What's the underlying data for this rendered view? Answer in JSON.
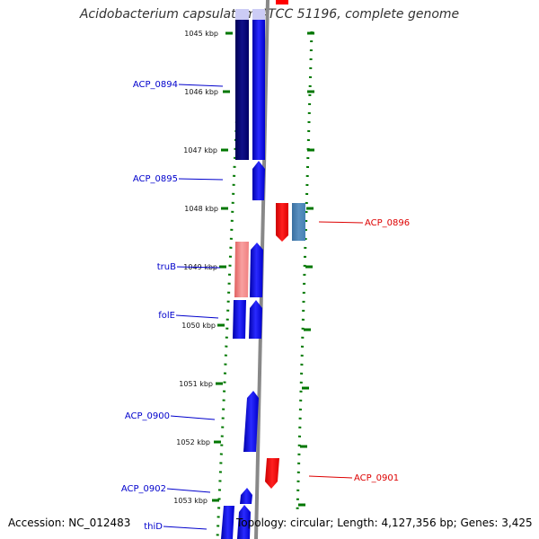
{
  "title": "Acidobacterium capsulatum ATCC 51196, complete genome",
  "ticks": [
    "1045 kbp",
    "1046 kbp",
    "1047 kbp",
    "1048 kbp",
    "1049 kbp",
    "1050 kbp",
    "1051 kbp",
    "1052 kbp",
    "1053 kbp"
  ],
  "genes": [
    {
      "name": "ACP_0894",
      "strand": "forward",
      "color": "#0000cc"
    },
    {
      "name": "ACP_0895",
      "strand": "forward",
      "color": "#0000cc"
    },
    {
      "name": "ACP_0896",
      "strand": "reverse",
      "color": "#dd0000"
    },
    {
      "name": "truB",
      "strand": "forward",
      "color": "#0000cc"
    },
    {
      "name": "folE",
      "strand": "forward",
      "color": "#0000cc"
    },
    {
      "name": "ACP_0900",
      "strand": "forward",
      "color": "#0000cc"
    },
    {
      "name": "ACP_0901",
      "strand": "reverse",
      "color": "#dd0000"
    },
    {
      "name": "ACP_0902",
      "strand": "forward",
      "color": "#0000cc"
    },
    {
      "name": "thiD",
      "strand": "forward",
      "color": "#0000cc"
    }
  ],
  "colors": {
    "forward_cds": "#0000ff",
    "forward_gene": "#000080",
    "reverse_cds": "#ff0000",
    "reverse_gene": "#4682b4",
    "pseudo_gene": "#f08080",
    "backbone": "#888888",
    "tick_marks": "#007700"
  },
  "footer": {
    "accession": "Accession: NC_012483",
    "topology": "Topology: circular; Length: 4,127,356 bp; Genes: 3,425"
  }
}
